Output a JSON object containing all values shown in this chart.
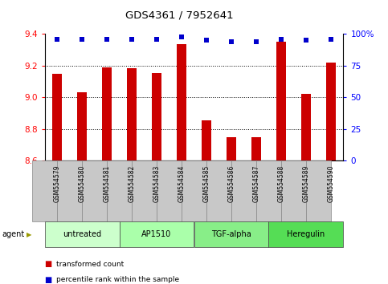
{
  "title": "GDS4361 / 7952641",
  "samples": [
    "GSM554579",
    "GSM554580",
    "GSM554581",
    "GSM554582",
    "GSM554583",
    "GSM554584",
    "GSM554585",
    "GSM554586",
    "GSM554587",
    "GSM554588",
    "GSM554589",
    "GSM554590"
  ],
  "bar_values": [
    9.15,
    9.03,
    9.19,
    9.185,
    9.155,
    9.335,
    8.855,
    8.745,
    8.745,
    9.35,
    9.02,
    9.22
  ],
  "percentile_values": [
    96,
    96,
    96,
    96,
    96,
    98,
    95,
    94,
    94,
    96,
    95,
    96
  ],
  "ylim_left": [
    8.6,
    9.4
  ],
  "ylim_right": [
    0,
    100
  ],
  "yticks_left": [
    8.6,
    8.8,
    9.0,
    9.2,
    9.4
  ],
  "yticks_right": [
    0,
    25,
    50,
    75,
    100
  ],
  "ytick_labels_right": [
    "0",
    "25",
    "50",
    "75",
    "100%"
  ],
  "bar_color": "#cc0000",
  "percentile_color": "#0000cc",
  "bar_bottom": 8.6,
  "groups": [
    {
      "label": "untreated",
      "start": 0,
      "end": 2,
      "color": "#ccffcc"
    },
    {
      "label": "AP1510",
      "start": 3,
      "end": 5,
      "color": "#aaffaa"
    },
    {
      "label": "TGF-alpha",
      "start": 6,
      "end": 8,
      "color": "#88ee88"
    },
    {
      "label": "Heregulin",
      "start": 9,
      "end": 11,
      "color": "#55dd55"
    }
  ],
  "bar_width": 0.4,
  "xlabel_bg": "#c8c8c8",
  "legend_items": [
    {
      "label": "transformed count",
      "color": "#cc0000"
    },
    {
      "label": "percentile rank within the sample",
      "color": "#0000cc"
    }
  ],
  "agent_label": "agent"
}
